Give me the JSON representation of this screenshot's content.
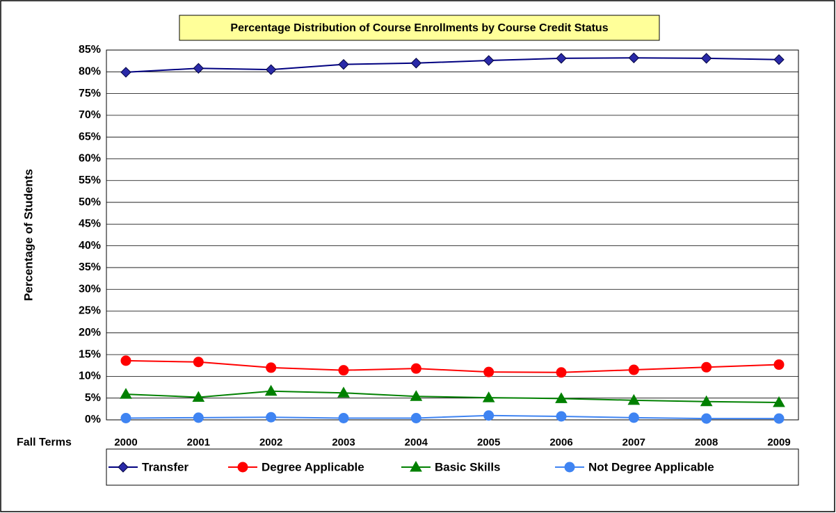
{
  "chart_data": {
    "type": "line",
    "title": "Percentage Distribution of Course Enrollments by Course Credit Status",
    "y_label": "Percentage of Students",
    "x_label": "Fall Terms",
    "categories": [
      "2000",
      "2001",
      "2002",
      "2003",
      "2004",
      "2005",
      "2006",
      "2007",
      "2008",
      "2009"
    ],
    "series": [
      {
        "name": "Transfer",
        "color": "#000080",
        "marker": "diamond",
        "values": [
          79.9,
          80.8,
          80.5,
          81.7,
          82.0,
          82.6,
          83.1,
          83.2,
          83.1,
          82.8
        ]
      },
      {
        "name": "Degree Applicable",
        "color": "#ff0000",
        "marker": "circle",
        "values": [
          13.6,
          13.3,
          12.0,
          11.4,
          11.8,
          11.0,
          10.9,
          11.5,
          12.1,
          12.7
        ]
      },
      {
        "name": "Basic Skills",
        "color": "#008000",
        "marker": "triangle",
        "values": [
          5.9,
          5.2,
          6.6,
          6.2,
          5.4,
          5.1,
          4.9,
          4.5,
          4.2,
          4.0
        ]
      },
      {
        "name": "Not Degree Applicable",
        "color": "#3f84f2",
        "marker": "circle",
        "values": [
          0.4,
          0.5,
          0.6,
          0.4,
          0.4,
          1.0,
          0.8,
          0.5,
          0.3,
          0.3
        ]
      }
    ],
    "ylim": [
      0,
      85
    ],
    "yticks": [
      {
        "value": 0,
        "label": "0%"
      },
      {
        "value": 5,
        "label": "5%"
      },
      {
        "value": 10,
        "label": "10%"
      },
      {
        "value": 15,
        "label": "15%"
      },
      {
        "value": 20,
        "label": "20%"
      },
      {
        "value": 25,
        "label": "25%"
      },
      {
        "value": 30,
        "label": "30%"
      },
      {
        "value": 35,
        "label": "35%"
      },
      {
        "value": 40,
        "label": "40%"
      },
      {
        "value": 45,
        "label": "45%"
      },
      {
        "value": 50,
        "label": "50%"
      },
      {
        "value": 55,
        "label": "55%"
      },
      {
        "value": 60,
        "label": "60%"
      },
      {
        "value": 65,
        "label": "65%"
      },
      {
        "value": 70,
        "label": "70%"
      },
      {
        "value": 75,
        "label": "75%"
      },
      {
        "value": 80,
        "label": "80%"
      },
      {
        "value": 85,
        "label": "85%"
      }
    ],
    "grid": true,
    "legend": "bottom"
  }
}
